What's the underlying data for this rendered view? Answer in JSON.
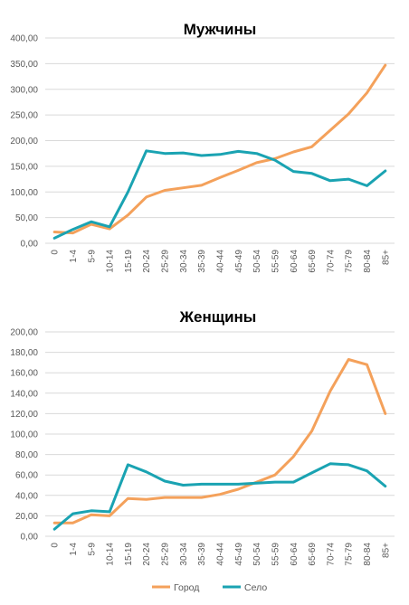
{
  "chart_data": [
    {
      "type": "line",
      "title": "Мужчины",
      "ylim": [
        0,
        400
      ],
      "ytick_labels": [
        "0,00",
        "50,00",
        "100,00",
        "150,00",
        "200,00",
        "250,00",
        "300,00",
        "350,00",
        "400,00"
      ],
      "yticks": [
        0,
        50,
        100,
        150,
        200,
        250,
        300,
        350,
        400
      ],
      "grid": true,
      "categories": [
        "0",
        "1-4",
        "5-9",
        "10-14",
        "15-19",
        "20-24",
        "25-29",
        "30-34",
        "35-39",
        "40-44",
        "45-49",
        "50-54",
        "55-59",
        "60-64",
        "65-69",
        "70-74",
        "75-79",
        "80-84",
        "85+"
      ],
      "series": [
        {
          "name": "Город",
          "color": "#f4a15b",
          "values": [
            22,
            20,
            37,
            28,
            55,
            90,
            103,
            108,
            113,
            128,
            142,
            157,
            165,
            178,
            188,
            220,
            252,
            293,
            347
          ]
        },
        {
          "name": "Село",
          "color": "#1aa3b2",
          "values": [
            10,
            27,
            42,
            32,
            100,
            180,
            175,
            176,
            171,
            173,
            179,
            175,
            162,
            140,
            136,
            122,
            125,
            112,
            141
          ]
        }
      ]
    },
    {
      "type": "line",
      "title": "Женщины",
      "ylim": [
        0,
        200
      ],
      "ytick_labels": [
        "0,00",
        "20,00",
        "40,00",
        "60,00",
        "80,00",
        "100,00",
        "120,00",
        "140,00",
        "160,00",
        "180,00",
        "200,00"
      ],
      "yticks": [
        0,
        20,
        40,
        60,
        80,
        100,
        120,
        140,
        160,
        180,
        200
      ],
      "grid": true,
      "categories": [
        "0",
        "1-4",
        "5-9",
        "10-14",
        "15-19",
        "20-24",
        "25-29",
        "30-34",
        "35-39",
        "40-44",
        "45-49",
        "50-54",
        "55-59",
        "60-64",
        "65-69",
        "70-74",
        "75-79",
        "80-84",
        "85+"
      ],
      "series": [
        {
          "name": "Город",
          "color": "#f4a15b",
          "values": [
            13,
            13,
            21,
            20,
            37,
            36,
            38,
            38,
            38,
            41,
            46,
            53,
            60,
            78,
            103,
            142,
            173,
            168,
            120
          ]
        },
        {
          "name": "Село",
          "color": "#1aa3b2",
          "values": [
            7,
            22,
            25,
            24,
            70,
            63,
            54,
            50,
            51,
            51,
            51,
            52,
            53,
            53,
            62,
            71,
            70,
            64,
            49
          ]
        }
      ]
    }
  ],
  "legend": {
    "position": "bottom",
    "items": [
      {
        "label": "Город",
        "color": "#f4a15b"
      },
      {
        "label": "Село",
        "color": "#1aa3b2"
      }
    ]
  }
}
